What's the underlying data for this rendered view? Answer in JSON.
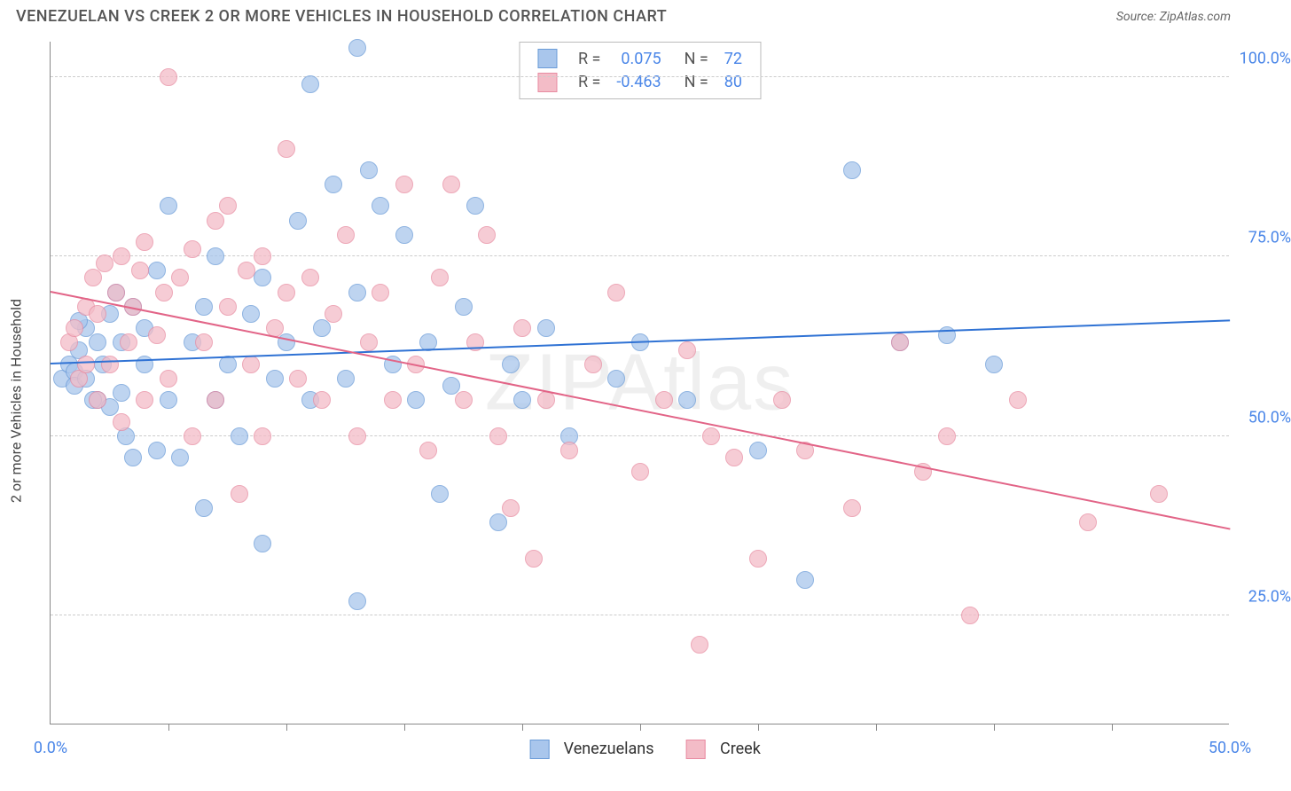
{
  "title": "VENEZUELAN VS CREEK 2 OR MORE VEHICLES IN HOUSEHOLD CORRELATION CHART",
  "source": "Source: ZipAtlas.com",
  "watermark": "ZIPAtlas",
  "ylabel": "2 or more Vehicles in Household",
  "chart": {
    "type": "scatter",
    "xlim": [
      0,
      50
    ],
    "ylim": [
      10,
      105
    ],
    "y_ticks": [
      25.0,
      50.0,
      75.0,
      100.0
    ],
    "x_ticks": [
      0.0,
      50.0
    ],
    "x_minor_ticks": [
      5,
      10,
      15,
      20,
      25,
      30,
      35,
      40,
      45
    ],
    "grid_color": "#cccccc",
    "background_color": "#ffffff",
    "axis_color": "#888888",
    "tick_label_color": "#4a86e8",
    "point_radius": 10,
    "series": [
      {
        "name": "Venezuelans",
        "color_fill": "#a9c6ec",
        "color_stroke": "#6a9bd8",
        "line_color": "#2f72d4",
        "R": 0.075,
        "N": 72,
        "trend": {
          "x1": 0,
          "y1": 60,
          "x2": 50,
          "y2": 66
        },
        "points": [
          [
            0.5,
            58
          ],
          [
            0.8,
            60
          ],
          [
            1.0,
            59
          ],
          [
            1.2,
            62
          ],
          [
            1.0,
            57
          ],
          [
            1.5,
            58
          ],
          [
            1.5,
            65
          ],
          [
            2.0,
            55
          ],
          [
            2.0,
            63
          ],
          [
            2.2,
            60
          ],
          [
            2.5,
            67
          ],
          [
            2.5,
            54
          ],
          [
            2.8,
            70
          ],
          [
            3.0,
            56
          ],
          [
            3.0,
            63
          ],
          [
            3.2,
            50
          ],
          [
            3.5,
            68
          ],
          [
            3.5,
            47
          ],
          [
            1.8,
            55
          ],
          [
            1.2,
            66
          ],
          [
            4.0,
            60
          ],
          [
            4.0,
            65
          ],
          [
            4.5,
            48
          ],
          [
            4.5,
            73
          ],
          [
            5.0,
            55
          ],
          [
            5.0,
            82
          ],
          [
            5.5,
            47
          ],
          [
            6.0,
            63
          ],
          [
            6.5,
            68
          ],
          [
            6.5,
            40
          ],
          [
            7.0,
            55
          ],
          [
            7.0,
            75
          ],
          [
            7.5,
            60
          ],
          [
            8.0,
            50
          ],
          [
            8.5,
            67
          ],
          [
            9.0,
            35
          ],
          [
            9.0,
            72
          ],
          [
            9.5,
            58
          ],
          [
            10.0,
            63
          ],
          [
            10.5,
            80
          ],
          [
            11.0,
            99
          ],
          [
            11.0,
            55
          ],
          [
            11.5,
            65
          ],
          [
            12.0,
            85
          ],
          [
            12.5,
            58
          ],
          [
            13.0,
            70
          ],
          [
            13.0,
            104
          ],
          [
            13.5,
            87
          ],
          [
            14.0,
            82
          ],
          [
            14.5,
            60
          ],
          [
            15.0,
            78
          ],
          [
            15.5,
            55
          ],
          [
            16.0,
            63
          ],
          [
            16.5,
            42
          ],
          [
            17.0,
            57
          ],
          [
            17.5,
            68
          ],
          [
            18.0,
            82
          ],
          [
            19.0,
            38
          ],
          [
            19.5,
            60
          ],
          [
            20.0,
            55
          ],
          [
            13.0,
            27
          ],
          [
            21.0,
            65
          ],
          [
            22.0,
            50
          ],
          [
            24.0,
            58
          ],
          [
            25.0,
            63
          ],
          [
            27.0,
            55
          ],
          [
            30.0,
            48
          ],
          [
            32.0,
            30
          ],
          [
            34.0,
            87
          ],
          [
            36.0,
            63
          ],
          [
            38.0,
            64
          ],
          [
            40.0,
            60
          ]
        ]
      },
      {
        "name": "Creek",
        "color_fill": "#f3bcc7",
        "color_stroke": "#e88ba1",
        "line_color": "#e26487",
        "R": -0.463,
        "N": 80,
        "trend": {
          "x1": 0,
          "y1": 70,
          "x2": 50,
          "y2": 37
        },
        "points": [
          [
            0.8,
            63
          ],
          [
            1.0,
            65
          ],
          [
            1.2,
            58
          ],
          [
            1.5,
            68
          ],
          [
            1.5,
            60
          ],
          [
            1.8,
            72
          ],
          [
            2.0,
            55
          ],
          [
            2.0,
            67
          ],
          [
            2.3,
            74
          ],
          [
            2.5,
            60
          ],
          [
            2.8,
            70
          ],
          [
            3.0,
            52
          ],
          [
            3.0,
            75
          ],
          [
            3.3,
            63
          ],
          [
            3.5,
            68
          ],
          [
            3.8,
            73
          ],
          [
            4.0,
            55
          ],
          [
            4.0,
            77
          ],
          [
            4.5,
            64
          ],
          [
            4.8,
            70
          ],
          [
            5.0,
            58
          ],
          [
            5.0,
            100
          ],
          [
            5.5,
            72
          ],
          [
            6.0,
            50
          ],
          [
            6.0,
            76
          ],
          [
            6.5,
            63
          ],
          [
            7.0,
            80
          ],
          [
            7.0,
            55
          ],
          [
            7.5,
            68
          ],
          [
            7.5,
            82
          ],
          [
            8.0,
            42
          ],
          [
            8.3,
            73
          ],
          [
            8.5,
            60
          ],
          [
            9.0,
            75
          ],
          [
            9.0,
            50
          ],
          [
            9.5,
            65
          ],
          [
            10.0,
            70
          ],
          [
            10.0,
            90
          ],
          [
            10.5,
            58
          ],
          [
            11.0,
            72
          ],
          [
            11.5,
            55
          ],
          [
            12.0,
            67
          ],
          [
            12.5,
            78
          ],
          [
            13.0,
            50
          ],
          [
            13.5,
            63
          ],
          [
            14.0,
            70
          ],
          [
            14.5,
            55
          ],
          [
            15.0,
            85
          ],
          [
            15.5,
            60
          ],
          [
            16.0,
            48
          ],
          [
            16.5,
            72
          ],
          [
            17.0,
            85
          ],
          [
            17.5,
            55
          ],
          [
            18.0,
            63
          ],
          [
            18.5,
            78
          ],
          [
            19.0,
            50
          ],
          [
            19.5,
            40
          ],
          [
            20.0,
            65
          ],
          [
            20.5,
            33
          ],
          [
            21.0,
            55
          ],
          [
            22.0,
            48
          ],
          [
            23.0,
            60
          ],
          [
            24.0,
            70
          ],
          [
            25.0,
            45
          ],
          [
            26.0,
            55
          ],
          [
            27.0,
            62
          ],
          [
            27.5,
            21
          ],
          [
            28.0,
            50
          ],
          [
            29.0,
            47
          ],
          [
            30.0,
            33
          ],
          [
            31.0,
            55
          ],
          [
            32.0,
            48
          ],
          [
            34.0,
            40
          ],
          [
            36.0,
            63
          ],
          [
            37.0,
            45
          ],
          [
            38.0,
            50
          ],
          [
            39.0,
            25
          ],
          [
            41.0,
            55
          ],
          [
            44.0,
            38
          ],
          [
            47.0,
            42
          ]
        ]
      }
    ]
  },
  "legend_top_labels": {
    "R": "R =",
    "N": "N ="
  },
  "legend_bottom": [
    "Venezuelans",
    "Creek"
  ]
}
